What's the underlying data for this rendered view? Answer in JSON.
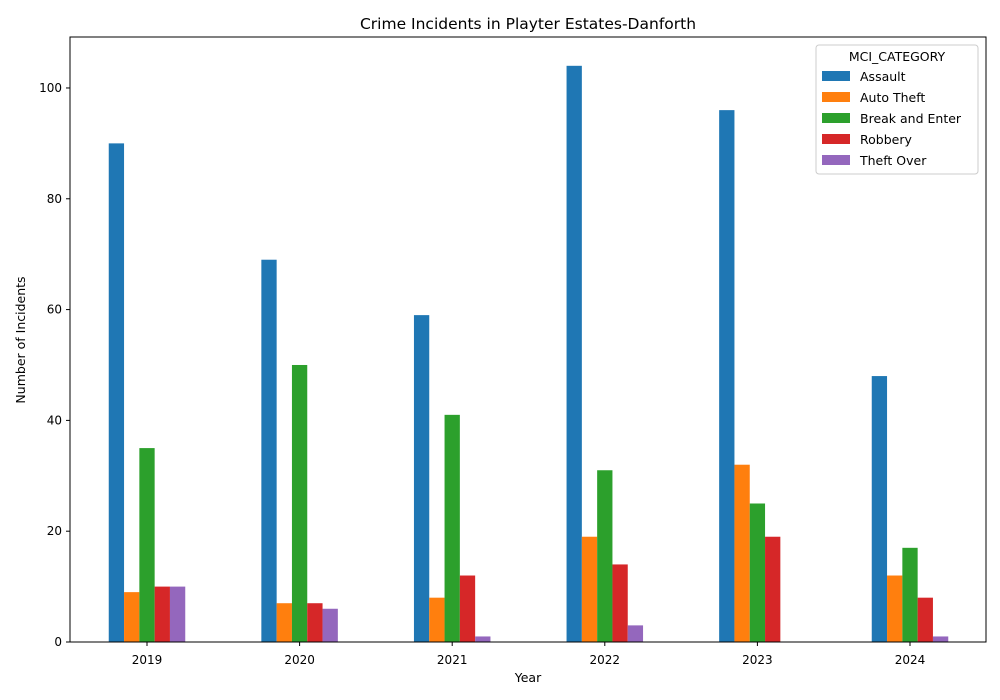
{
  "chart_data": {
    "type": "bar",
    "title": "Crime Incidents in Playter Estates-Danforth",
    "xlabel": "Year",
    "ylabel": "Number of Incidents",
    "categories": [
      "2019",
      "2020",
      "2021",
      "2022",
      "2023",
      "2024"
    ],
    "ylim": [
      0,
      109.2
    ],
    "yticks": [
      0,
      20,
      40,
      60,
      80,
      100
    ],
    "legend": {
      "title": "MCI_CATEGORY",
      "position": "top-right"
    },
    "grid": false,
    "series": [
      {
        "name": "Assault",
        "color": "#1f77b4",
        "values": [
          90,
          69,
          59,
          104,
          96,
          48
        ]
      },
      {
        "name": "Auto Theft",
        "color": "#ff7f0e",
        "values": [
          9,
          7,
          8,
          19,
          32,
          12
        ]
      },
      {
        "name": "Break and Enter",
        "color": "#2ca02c",
        "values": [
          35,
          50,
          41,
          31,
          25,
          17
        ]
      },
      {
        "name": "Robbery",
        "color": "#d62728",
        "values": [
          10,
          7,
          12,
          14,
          19,
          8
        ]
      },
      {
        "name": "Theft Over",
        "color": "#9467bd",
        "values": [
          10,
          6,
          1,
          3,
          0,
          1
        ]
      }
    ]
  }
}
